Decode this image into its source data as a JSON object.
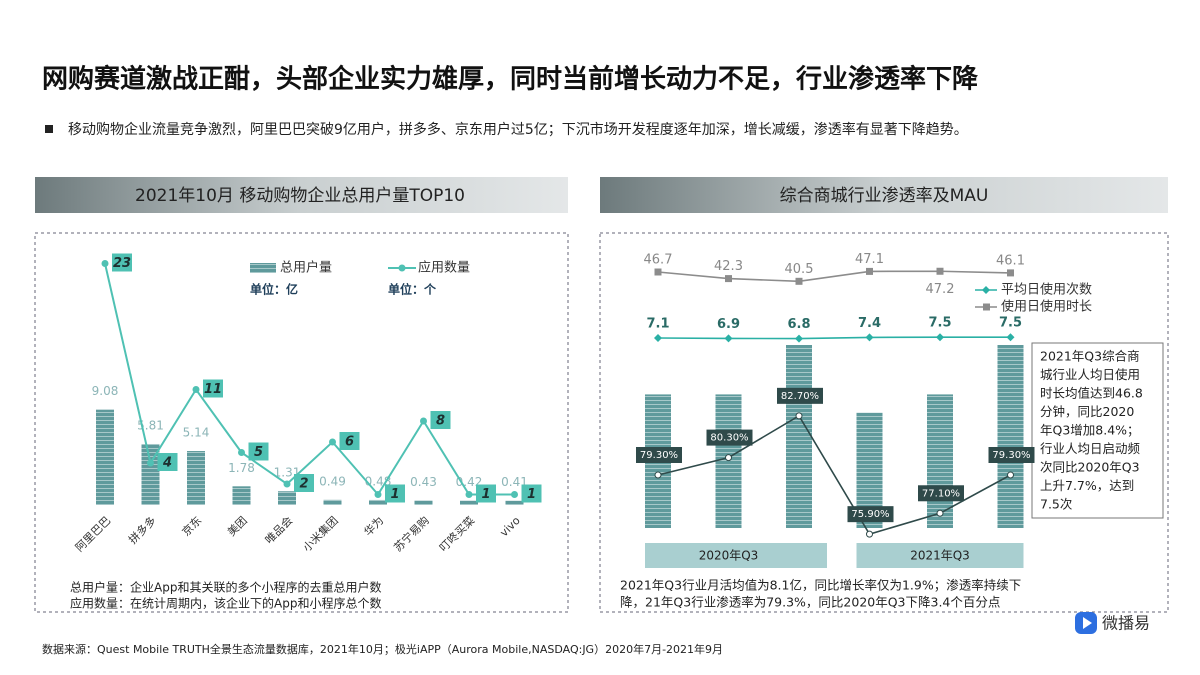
{
  "header": {
    "title": "网购赛道激战正酣，头部企业实力雄厚，同时当前增长动力不足，行业渗透率下降",
    "bullet": "移动购物企业流量竞争激烈，阿里巴巴突破9亿用户，拼多多、京东用户过5亿；下沉市场开发程度逐年加深，增长减缓，渗透率有显著下降趋势。"
  },
  "chart_data": [
    {
      "type": "bar-line",
      "title": "2021年10月 移动购物企业总用户量TOP10",
      "categories": [
        "阿里巴巴",
        "拼多多",
        "京东",
        "美团",
        "唯品会",
        "小米集团",
        "华为",
        "苏宁易购",
        "叮咚买菜",
        "vivo"
      ],
      "series": [
        {
          "name": "总用户量",
          "unit": "单位：亿",
          "type": "bar",
          "color": "#5f9a9c",
          "values": [
            9.08,
            5.81,
            5.14,
            1.78,
            1.31,
            0.49,
            0.48,
            0.43,
            0.42,
            0.41
          ]
        },
        {
          "name": "应用数量",
          "unit": "单位：个",
          "type": "line",
          "color": "#4fc1b3",
          "values": [
            23,
            4,
            11,
            5,
            2,
            6,
            1,
            8,
            1,
            1
          ]
        }
      ],
      "notes": [
        "总用户量：企业App和其关联的多个小程序的去重总用户数",
        "应用数量：在统计周期内，该企业下的App和小程序总个数"
      ]
    },
    {
      "type": "bar-line",
      "title": "综合商城行业渗透率及MAU",
      "categories": [
        null,
        null,
        null,
        null,
        null,
        null
      ],
      "groups": [
        {
          "label": "2020年Q3",
          "size": 3
        },
        {
          "label": "2021年Q3",
          "size": 3
        }
      ],
      "series": [
        {
          "type": "bar",
          "color": "#5f9a9c",
          "values": [
            7.3,
            7.3,
            10,
            6.3,
            7.3,
            10
          ]
        },
        {
          "type": "line",
          "color": "#2f4a4a",
          "values": [
            79.3,
            80.3,
            82.7,
            75.9,
            77.1,
            79.3
          ],
          "value_labels": [
            "79.30%",
            "80.30%",
            "82.70%",
            "75.90%",
            "77.10%",
            "79.30%"
          ]
        },
        {
          "name": "平均日使用次数",
          "type": "line",
          "color": "#2ab0a5",
          "values": [
            7.1,
            6.9,
            6.8,
            7.4,
            7.5,
            7.5
          ]
        },
        {
          "name": "使用日使用时长",
          "type": "line",
          "color": "#8c8c8c",
          "values": [
            46.7,
            42.3,
            40.5,
            47.1,
            47.2,
            46.1
          ]
        }
      ],
      "annotation": [
        "2021年Q3综合商",
        "城行业人均日使用",
        "时长均值达到46.8",
        "分钟，同比2020",
        "年Q3增加8.4%；",
        "行业人均日启动频",
        "次同比2020年Q3",
        "上升7.7%，达到",
        "7.5次"
      ],
      "notes": [
        "2021年Q3行业月活均值为8.1亿，同比增长率仅为1.9%；渗透率持续下",
        "降，21年Q3行业渗透率为79.3%，同比2020年Q3下降3.4个百分点"
      ]
    }
  ],
  "source": "数据来源：Quest Mobile TRUTH全景生态流量数据库，2021年10月；极光iAPP（Aurora Mobile,NASDAQ:JG）2020年7月-2021年9月",
  "logo": "微播易"
}
